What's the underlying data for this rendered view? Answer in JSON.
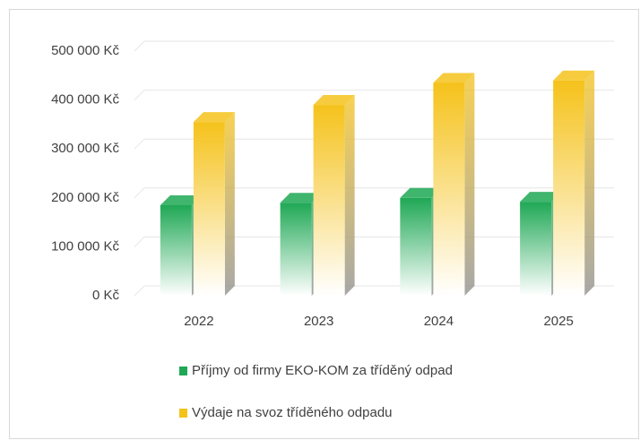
{
  "chart_data": {
    "type": "bar3d",
    "categories": [
      "2022",
      "2023",
      "2024",
      "2025"
    ],
    "series": [
      {
        "name": "Příjmy od firmy EKO-KOM za tříděný odpad",
        "color": "#1fa855",
        "values": [
          185000,
          190000,
          200000,
          192000
        ]
      },
      {
        "name": "Výdaje na svoz tříděného odpadu",
        "color": "#f5c21b",
        "values": [
          355000,
          390000,
          435000,
          440000
        ]
      }
    ],
    "ylim": [
      0,
      500000
    ],
    "yticks": [
      {
        "value": 0,
        "label": "0 Kč"
      },
      {
        "value": 100000,
        "label": "100 000 Kč"
      },
      {
        "value": 200000,
        "label": "200 000 Kč"
      },
      {
        "value": 300000,
        "label": "300 000 Kč"
      },
      {
        "value": 400000,
        "label": "400 000 Kč"
      },
      {
        "value": 500000,
        "label": "500 000 Kč"
      }
    ],
    "grid": true,
    "legend": "bottom"
  }
}
